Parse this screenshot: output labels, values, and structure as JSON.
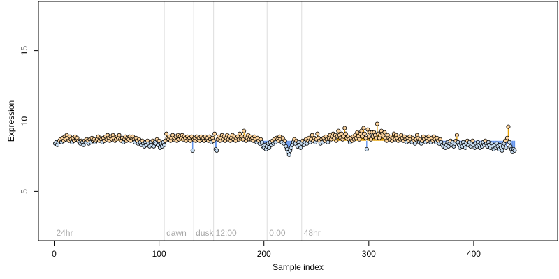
{
  "chart_data": {
    "type": "scatter",
    "title": "",
    "xlabel": "Sample index",
    "ylabel": "Expression",
    "xlim": [
      -15,
      480
    ],
    "ylim": [
      1.5,
      18.5
    ],
    "xticks": [
      0,
      100,
      200,
      300,
      400
    ],
    "yticks": [
      5,
      10,
      15
    ],
    "baseline": 8.6,
    "grid": false,
    "legend": "none",
    "colors": {
      "above": "#e69f00",
      "below": "#6495ed",
      "point_fill_above": "#fdd49e",
      "point_fill_below": "#c6dbef",
      "section_line": "#dddddd",
      "section_text": "#a8a8a8"
    },
    "sections": [
      {
        "label": "24hr",
        "x": 0
      },
      {
        "label": "dawn",
        "x": 105
      },
      {
        "label": "dusk",
        "x": 133
      },
      {
        "label": "12:00",
        "x": 152
      },
      {
        "label": "0:00",
        "x": 203
      },
      {
        "label": "48hr",
        "x": 236
      }
    ],
    "series": [
      {
        "x_start": 1,
        "x_step": 1,
        "y": [
          8.4,
          8.5,
          8.3,
          8.5,
          8.6,
          8.7,
          8.5,
          8.8,
          8.6,
          8.9,
          8.7,
          9.0,
          8.8,
          8.6,
          8.9,
          8.7,
          8.5,
          8.8,
          8.6,
          8.9,
          8.7,
          8.8,
          8.6,
          8.5,
          8.4,
          8.6,
          8.5,
          8.3,
          8.6,
          8.5,
          8.7,
          8.6,
          8.4,
          8.7,
          8.5,
          8.8,
          8.6,
          8.7,
          8.5,
          8.6,
          8.7,
          8.9,
          8.6,
          8.8,
          8.7,
          8.5,
          8.8,
          8.6,
          8.9,
          8.7,
          9.0,
          8.8,
          8.6,
          8.9,
          8.7,
          9.0,
          8.8,
          8.6,
          8.7,
          8.9,
          8.8,
          9.0,
          8.7,
          8.6,
          8.8,
          8.5,
          8.7,
          8.9,
          8.6,
          8.8,
          8.7,
          8.9,
          8.6,
          8.8,
          8.9,
          8.7,
          8.5,
          8.8,
          8.6,
          8.4,
          8.7,
          8.5,
          8.3,
          8.6,
          8.4,
          8.2,
          8.5,
          8.3,
          8.6,
          8.4,
          8.2,
          8.5,
          8.3,
          8.6,
          8.2,
          8.5,
          8.4,
          8.7,
          8.3,
          8.6,
          8.1,
          8.4,
          8.2,
          8.5,
          8.3,
          8.6,
          9.1,
          8.8,
          8.7,
          8.9,
          8.6,
          8.8,
          9.0,
          8.7,
          8.8,
          8.9,
          8.6,
          9.0,
          8.7,
          8.9,
          8.8,
          9.0,
          8.7,
          8.9,
          8.8,
          8.6,
          8.9,
          8.7,
          8.8,
          8.6,
          8.9,
          7.9,
          8.7,
          8.8,
          8.6,
          8.9,
          8.7,
          8.8,
          8.6,
          8.9,
          8.7,
          8.8,
          8.6,
          8.9,
          8.7,
          8.8,
          8.6,
          8.9,
          8.7,
          8.5,
          8.8,
          8.6,
          9.1,
          8.0,
          7.9,
          8.7,
          8.9,
          8.6,
          8.8,
          9.0,
          8.7,
          8.9,
          8.6,
          8.8,
          9.0,
          8.7,
          8.9,
          8.6,
          8.8,
          9.0,
          8.7,
          8.9,
          8.6,
          8.8,
          8.9,
          8.7,
          9.1,
          8.8,
          8.9,
          8.7,
          9.3,
          8.9,
          8.6,
          8.8,
          9.0,
          8.7,
          8.9,
          8.7,
          8.8,
          8.6,
          8.9,
          8.7,
          8.5,
          8.8,
          8.6,
          8.4,
          8.7,
          8.5,
          8.2,
          8.1,
          8.3,
          8.0,
          8.2,
          8.4,
          8.1,
          8.5,
          8.3,
          8.6,
          8.4,
          8.7,
          8.5,
          8.8,
          8.7,
          8.6,
          8.9,
          8.7,
          8.5,
          8.8,
          8.4,
          8.6,
          8.2,
          8.0,
          7.8,
          7.6,
          7.9,
          8.1,
          8.3,
          8.5,
          8.7,
          8.4,
          8.6,
          8.2,
          8.5,
          8.3,
          8.1,
          8.4,
          8.6,
          8.3,
          8.5,
          8.7,
          8.4,
          8.6,
          8.8,
          8.5,
          8.7,
          9.0,
          8.6,
          8.8,
          8.5,
          8.7,
          9.1,
          8.8,
          8.6,
          8.4,
          8.7,
          8.5,
          8.8,
          8.6,
          8.9,
          8.7,
          8.5,
          8.8,
          9.0,
          8.7,
          8.9,
          9.1,
          8.8,
          9.0,
          8.6,
          8.9,
          9.3,
          9.0,
          8.8,
          9.1,
          8.7,
          8.9,
          9.5,
          9.1,
          8.8,
          8.9,
          8.7,
          8.5,
          8.8,
          8.6,
          8.9,
          8.7,
          9.0,
          8.8,
          9.2,
          8.9,
          8.7,
          9.1,
          9.3,
          8.9,
          9.5,
          9.1,
          8.8,
          8.0,
          9.4,
          8.9,
          9.2,
          8.7,
          9.2,
          8.9,
          9.2,
          9.0,
          8.8,
          9.8,
          9.1,
          8.8,
          9.0,
          9.3,
          9.1,
          8.9,
          9.2,
          8.8,
          8.6,
          9.0,
          8.8,
          8.7,
          8.9,
          8.6,
          8.8,
          9.1,
          8.7,
          9.0,
          8.8,
          8.6,
          8.9,
          8.7,
          9.0,
          8.8,
          8.6,
          8.9,
          8.7,
          8.5,
          8.8,
          8.6,
          8.9,
          8.7,
          8.5,
          8.8,
          8.6,
          8.4,
          8.7,
          9.0,
          8.8,
          8.5,
          8.7,
          8.4,
          8.6,
          8.9,
          8.7,
          8.5,
          8.8,
          8.6,
          8.9,
          8.7,
          8.5,
          8.8,
          8.6,
          8.9,
          8.7,
          8.5,
          8.8,
          8.6,
          8.4,
          8.7,
          8.5,
          8.3,
          8.2,
          8.4,
          8.1,
          8.3,
          8.5,
          8.2,
          8.4,
          8.6,
          8.3,
          8.5,
          8.2,
          8.4,
          8.6,
          9.0,
          8.5,
          8.3,
          8.1,
          8.4,
          8.2,
          8.5,
          8.3,
          8.1,
          8.4,
          8.6,
          8.3,
          8.5,
          8.2,
          8.4,
          8.6,
          8.3,
          8.1,
          8.4,
          8.2,
          8.5,
          8.3,
          8.1,
          8.4,
          8.2,
          8.5,
          8.3,
          8.6,
          8.4,
          8.2,
          8.5,
          8.3,
          8.1,
          8.4,
          8.2,
          8.0,
          8.3,
          8.1,
          8.4,
          8.2,
          8.0,
          8.3,
          8.1,
          7.9,
          8.2,
          8.4,
          8.6,
          8.1,
          8.8,
          9.6,
          8.5,
          8.2,
          8.0,
          7.8,
          8.0,
          7.9
        ]
      }
    ]
  }
}
